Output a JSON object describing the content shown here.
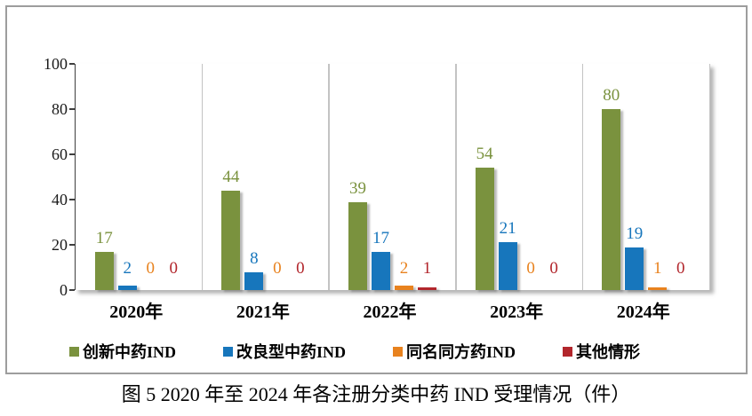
{
  "caption": "图 5  2020 年至 2024 年各注册分类中药 IND 受理情况（件）",
  "chart_data": {
    "type": "bar",
    "title": "",
    "xlabel": "",
    "ylabel": "",
    "ylim": [
      0,
      100
    ],
    "yticks": [
      0,
      20,
      40,
      60,
      80,
      100
    ],
    "grid": "vertical-category-separators",
    "legend_position": "bottom",
    "categories": [
      "2020年",
      "2021年",
      "2022年",
      "2023年",
      "2024年"
    ],
    "series": [
      {
        "name": "创新中药IND",
        "color": "#7A923E",
        "values": [
          17,
          44,
          39,
          54,
          80
        ]
      },
      {
        "name": "改良型中药IND",
        "color": "#1776BC",
        "values": [
          2,
          8,
          17,
          21,
          19
        ]
      },
      {
        "name": "同名同方药IND",
        "color": "#E8821E",
        "values": [
          0,
          0,
          2,
          0,
          1
        ]
      },
      {
        "name": "其他情形",
        "color": "#B2262C",
        "values": [
          0,
          0,
          1,
          0,
          0
        ]
      }
    ],
    "colors": {
      "frame_border": "#9d9d9d",
      "axis": "#3f3f3f",
      "separator": "#c3c3c3"
    }
  }
}
